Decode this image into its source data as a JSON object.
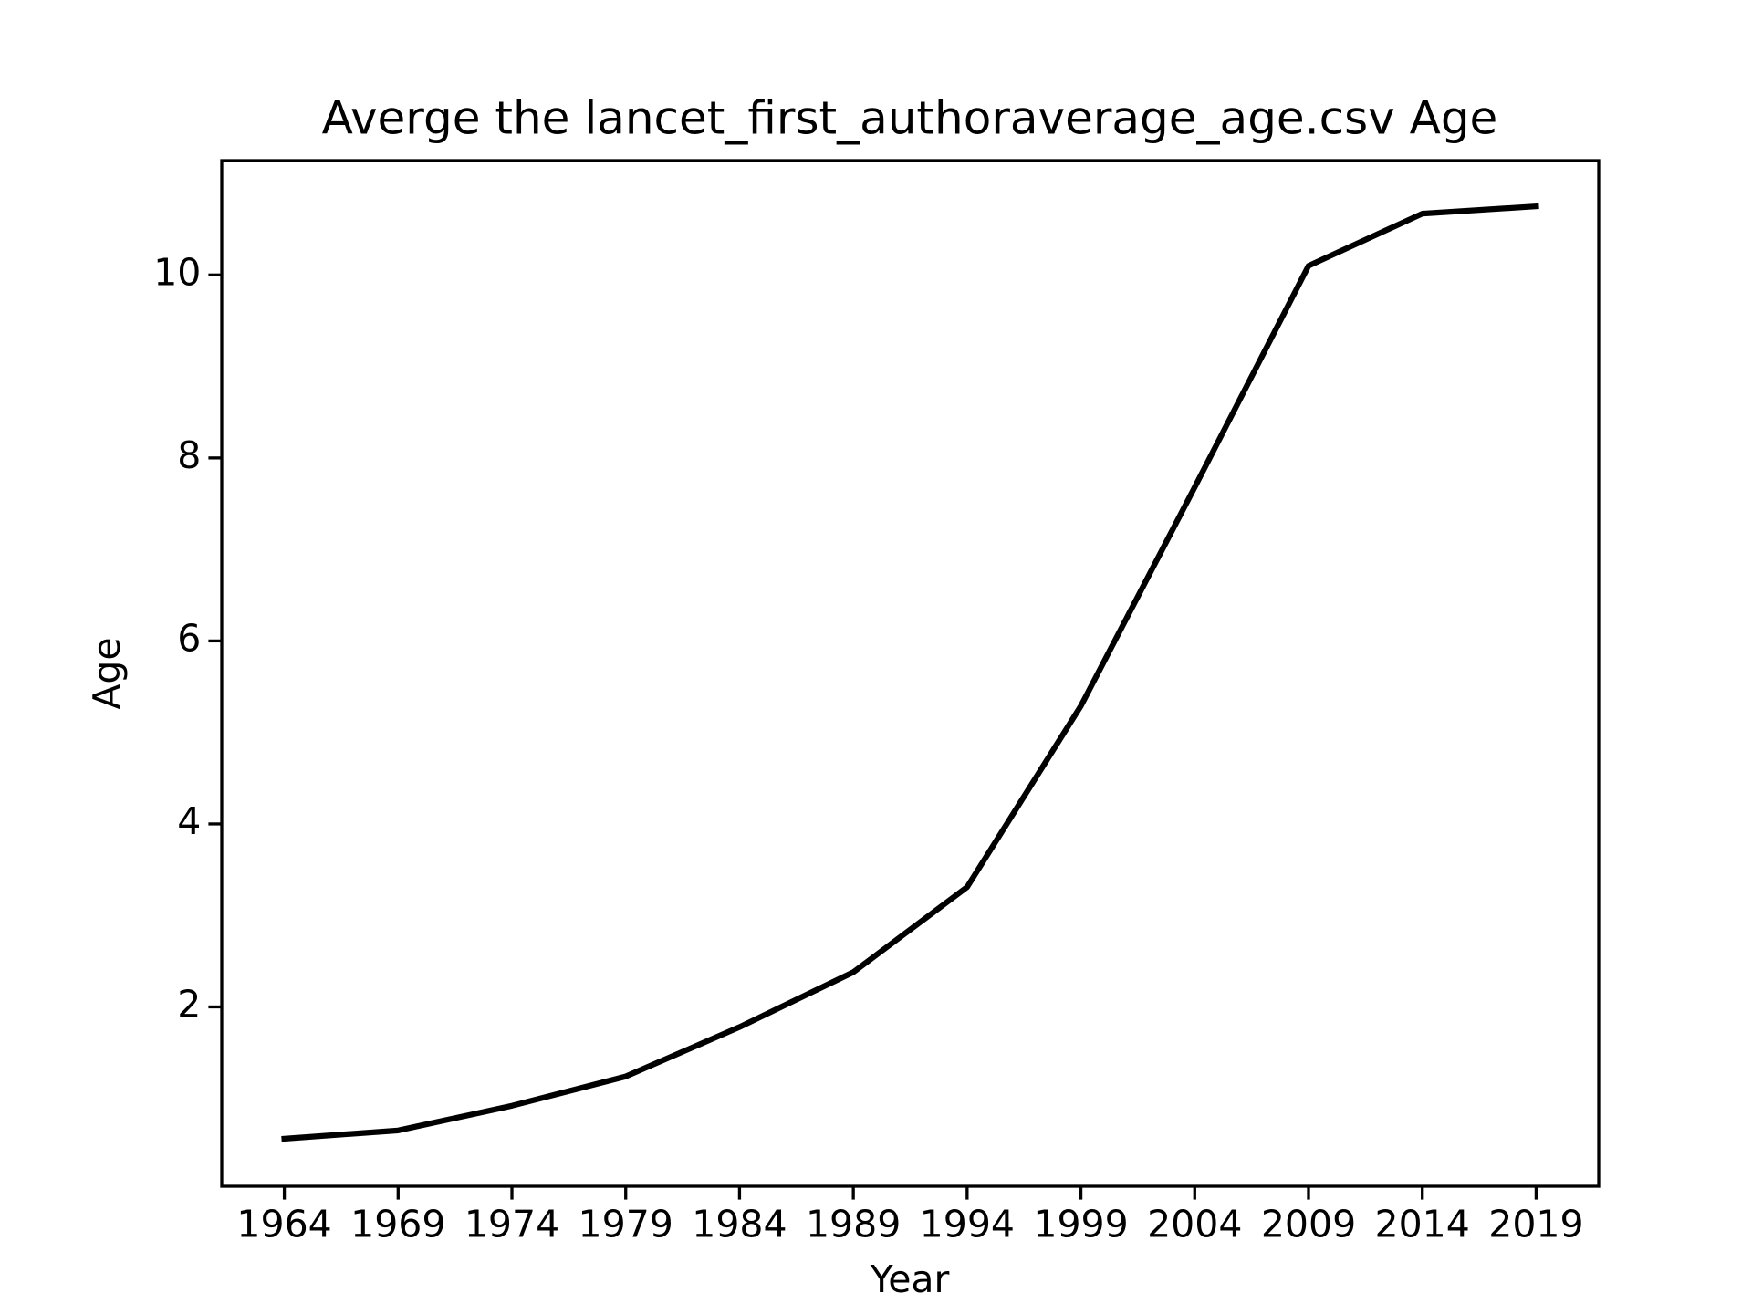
{
  "chart_data": {
    "type": "line",
    "title": "Averge the lancet_first_authoraverage_age.csv Age",
    "x_label": "Year",
    "y_label": "Age",
    "x": [
      1964,
      1969,
      1974,
      1979,
      1984,
      1989,
      1994,
      1999,
      2004,
      2009,
      2014,
      2019
    ],
    "series": [
      {
        "name": "Age",
        "color": "#000000",
        "values": [
          0.56,
          0.65,
          0.92,
          1.24,
          1.78,
          2.38,
          3.31,
          5.29,
          7.68,
          10.1,
          10.67,
          10.75
        ]
      }
    ],
    "xlim": [
      1961.25,
      2021.75
    ],
    "xticks": [
      1964,
      1969,
      1974,
      1979,
      1984,
      1989,
      1994,
      1999,
      2004,
      2009,
      2014,
      2019
    ],
    "ylim": [
      0.04,
      11.25
    ],
    "yticks": [
      2,
      4,
      6,
      8,
      10
    ],
    "grid": false
  }
}
